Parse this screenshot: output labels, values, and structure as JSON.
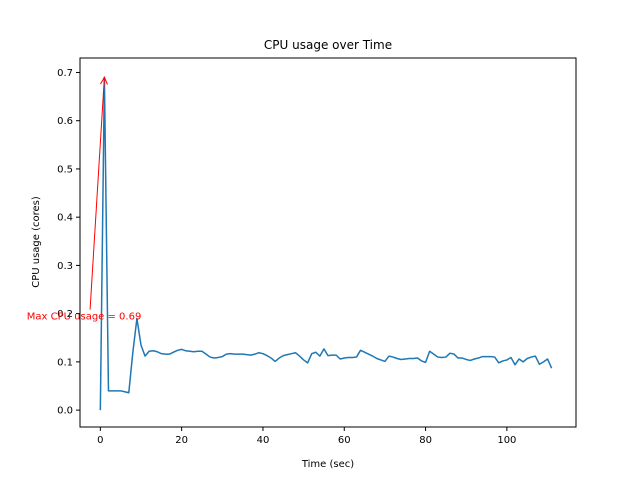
{
  "chart_data": {
    "type": "line",
    "title": "CPU usage over Time",
    "xlabel": "Time (sec)",
    "ylabel": "CPU usage (cores)",
    "xlim": [
      -5,
      117
    ],
    "ylim": [
      -0.035,
      0.73
    ],
    "xticks": [
      0,
      20,
      40,
      60,
      80,
      100
    ],
    "yticks": [
      0.0,
      0.1,
      0.2,
      0.3,
      0.4,
      0.5,
      0.6,
      0.7
    ],
    "grid": false,
    "series": [
      {
        "color": "#1f77b4",
        "x": [
          0,
          1,
          2,
          3,
          4,
          5,
          6,
          7,
          8,
          9,
          10,
          11,
          12,
          13,
          14,
          15,
          16,
          17,
          18,
          19,
          20,
          21,
          22,
          23,
          24,
          25,
          26,
          27,
          28,
          29,
          30,
          31,
          32,
          33,
          34,
          35,
          36,
          37,
          38,
          39,
          40,
          41,
          42,
          43,
          44,
          45,
          46,
          47,
          48,
          49,
          50,
          51,
          52,
          53,
          54,
          55,
          56,
          57,
          58,
          59,
          60,
          61,
          62,
          63,
          64,
          65,
          66,
          67,
          68,
          69,
          70,
          71,
          72,
          73,
          74,
          75,
          76,
          77,
          78,
          79,
          80,
          81,
          82,
          83,
          84,
          85,
          86,
          87,
          88,
          89,
          90,
          91,
          92,
          93,
          94,
          95,
          96,
          97,
          98,
          99,
          100,
          101,
          102,
          103,
          104,
          105,
          106,
          107,
          108,
          109,
          110,
          111
        ],
        "y": [
          0.0,
          0.69,
          0.04,
          0.04,
          0.04,
          0.04,
          0.038,
          0.036,
          0.12,
          0.19,
          0.135,
          0.112,
          0.122,
          0.123,
          0.121,
          0.117,
          0.116,
          0.116,
          0.12,
          0.124,
          0.126,
          0.123,
          0.122,
          0.121,
          0.122,
          0.122,
          0.116,
          0.11,
          0.108,
          0.109,
          0.111,
          0.116,
          0.117,
          0.116,
          0.116,
          0.116,
          0.115,
          0.114,
          0.116,
          0.119,
          0.117,
          0.113,
          0.108,
          0.101,
          0.108,
          0.113,
          0.115,
          0.117,
          0.119,
          0.112,
          0.104,
          0.098,
          0.117,
          0.12,
          0.112,
          0.127,
          0.113,
          0.114,
          0.114,
          0.106,
          0.108,
          0.109,
          0.109,
          0.11,
          0.124,
          0.12,
          0.116,
          0.112,
          0.107,
          0.104,
          0.101,
          0.112,
          0.11,
          0.107,
          0.105,
          0.106,
          0.107,
          0.107,
          0.108,
          0.102,
          0.099,
          0.122,
          0.116,
          0.11,
          0.109,
          0.11,
          0.118,
          0.116,
          0.108,
          0.108,
          0.105,
          0.103,
          0.106,
          0.108,
          0.111,
          0.111,
          0.111,
          0.11,
          0.098,
          0.102,
          0.104,
          0.109,
          0.094,
          0.106,
          0.1,
          0.107,
          0.11,
          0.112,
          0.095,
          0.1,
          0.106,
          0.087
        ]
      }
    ],
    "annotations": [
      {
        "text": "Max CPU usage = 0.69",
        "color": "#ff0000",
        "xy": [
          1,
          0.69
        ],
        "xytext": [
          -4,
          0.195
        ]
      }
    ]
  }
}
